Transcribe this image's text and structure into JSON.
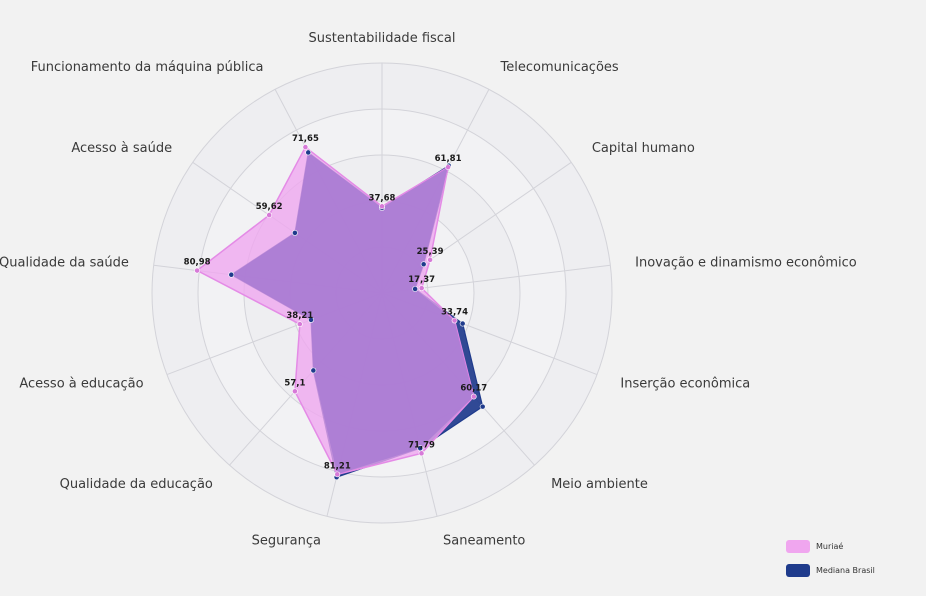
{
  "chart_data": {
    "type": "radar",
    "axes": [
      "Sustentabilidade fiscal",
      "Telecomunicações",
      "Capital humano",
      "Inovação e dinamismo econômico",
      "Inserção econômica",
      "Meio ambiente",
      "Saneamento",
      "Segurança",
      "Qualidade da educação",
      "Acesso à educação",
      "Qualidade da saúde",
      "Acesso à saúde",
      "Funcionamento da máquina pública"
    ],
    "rlim": [
      0,
      100
    ],
    "grid": true,
    "series": [
      {
        "name": "Muriaé",
        "color": "#f0a6ef",
        "values": [
          37.68,
          61.81,
          25.39,
          17.37,
          33.74,
          60.17,
          71.79,
          81.21,
          57.1,
          38.21,
          80.98,
          59.62,
          71.65
        ],
        "labels": [
          "37,68",
          "61,81",
          "25,39",
          "17,37",
          "33,74",
          "60,17",
          "71,79",
          "81,21",
          "57,1",
          "38,21",
          "80,98",
          "59,62",
          "71,65"
        ]
      },
      {
        "name": "Mediana Brasil",
        "color": "#1f3b8c",
        "values": [
          37.0,
          62.5,
          22.0,
          14.5,
          37.5,
          66.0,
          69.5,
          82.5,
          45.0,
          33.0,
          66.0,
          46.0,
          69.0
        ]
      }
    ],
    "legend_position": "bottom-right"
  }
}
